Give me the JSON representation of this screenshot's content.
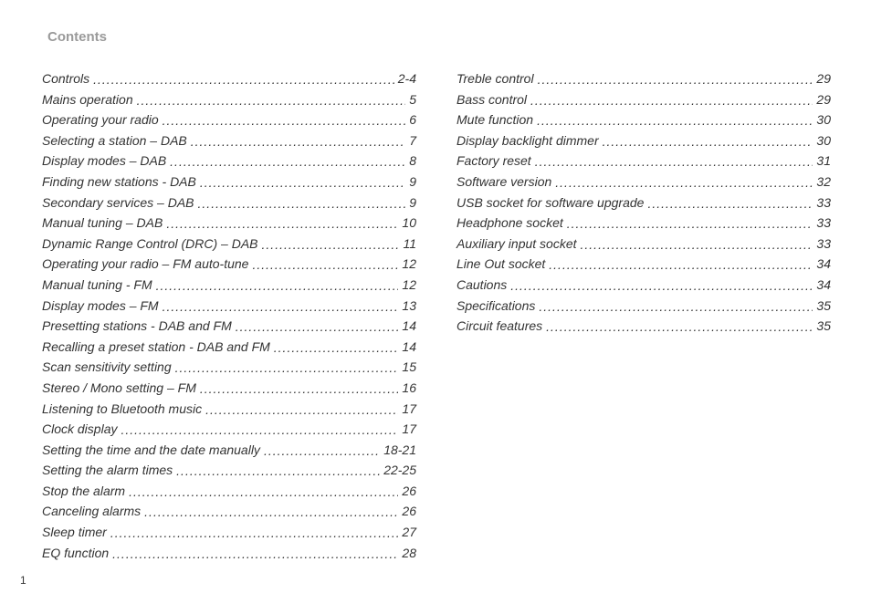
{
  "heading": "Contents",
  "pageNumber": "1",
  "left": [
    {
      "title": "Controls",
      "page": "2-4"
    },
    {
      "title": "Mains operation",
      "page": "5"
    },
    {
      "title": "Operating your radio",
      "page": "6"
    },
    {
      "title": "Selecting a station – DAB",
      "page": "7"
    },
    {
      "title": "Display modes – DAB",
      "page": "8"
    },
    {
      "title": "Finding new stations - DAB",
      "page": "9"
    },
    {
      "title": "Secondary services – DAB",
      "page": "9"
    },
    {
      "title": "Manual tuning – DAB",
      "page": "10"
    },
    {
      "title": "Dynamic Range Control (DRC) – DAB",
      "page": "11"
    },
    {
      "title": "Operating your radio – FM auto-tune",
      "page": "12"
    },
    {
      "title": "Manual tuning - FM",
      "page": "12"
    },
    {
      "title": "Display modes – FM",
      "page": "13"
    },
    {
      "title": "Presetting stations - DAB and FM",
      "page": "14"
    },
    {
      "title": "Recalling a preset station - DAB and FM",
      "page": "14"
    },
    {
      "title": "Scan sensitivity setting",
      "page": "15"
    },
    {
      "title": "Stereo / Mono setting – FM",
      "page": "16"
    },
    {
      "title": "Listening to Bluetooth music",
      "page": "17"
    },
    {
      "title": "Clock display",
      "page": "17"
    },
    {
      "title": "Setting the time and the date manually",
      "page": "18-21"
    },
    {
      "title": "Setting the alarm times",
      "page": "22-25"
    },
    {
      "title": "Stop the alarm",
      "page": "26"
    },
    {
      "title": "Canceling alarms",
      "page": "26"
    },
    {
      "title": "Sleep timer",
      "page": "27"
    },
    {
      "title": "EQ function",
      "page": "28"
    }
  ],
  "right": [
    {
      "title": "Treble control",
      "page": "29"
    },
    {
      "title": "Bass control",
      "page": "29"
    },
    {
      "title": "Mute function",
      "page": "30"
    },
    {
      "title": "Display backlight dimmer",
      "page": "30"
    },
    {
      "title": "Factory reset",
      "page": "31"
    },
    {
      "title": "Software version",
      "page": "32"
    },
    {
      "title": "USB socket for software upgrade",
      "page": "33"
    },
    {
      "title": "Headphone socket",
      "page": "33"
    },
    {
      "title": "Auxiliary input socket",
      "page": "33"
    },
    {
      "title": "Line Out socket",
      "page": "34"
    },
    {
      "title": "Cautions",
      "page": "34"
    },
    {
      "title": "Specifications",
      "page": "35"
    },
    {
      "title": "Circuit features",
      "page": "35"
    }
  ]
}
